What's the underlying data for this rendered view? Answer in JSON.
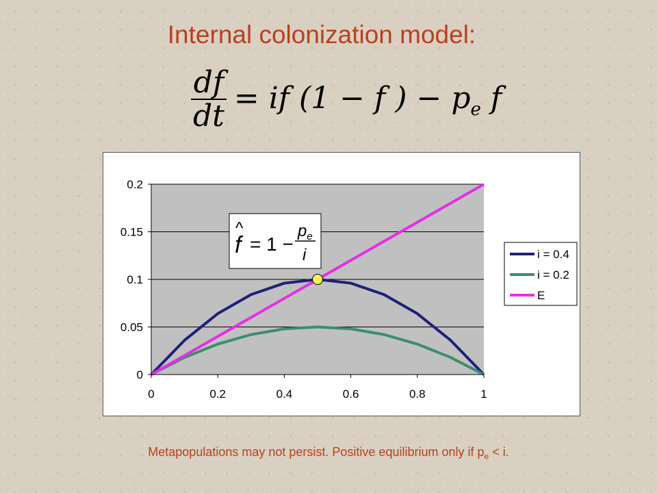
{
  "title": "Internal colonization model:",
  "equation": {
    "numerator": "df",
    "denominator": "dt",
    "rhs": "= if (1 − f ) − p",
    "rhs_sub": "e",
    "rhs_tail": "f"
  },
  "inset_equation": {
    "lhs": "f",
    "rhs_lead": "= 1 −",
    "numerator": "p",
    "numerator_sub": "e",
    "denominator": "i"
  },
  "footer": {
    "text_before": "Metapopulations may not persist. Positive equilibrium only if p",
    "sub": "e",
    "text_after": " < i."
  },
  "colors": {
    "title": "#b8401e",
    "plot_bg": "#c0c0c0",
    "series_i04": "#1f1f7a",
    "series_i02": "#3a8f6a",
    "series_E": "#e52ee5",
    "marker": "#f2f25a"
  },
  "chart_data": {
    "type": "line",
    "x": [
      0,
      0.1,
      0.2,
      0.3,
      0.4,
      0.5,
      0.6,
      0.7,
      0.8,
      0.9,
      1.0
    ],
    "series": [
      {
        "name": "i = 0.4",
        "color": "#1f1f7a",
        "values": [
          0,
          0.036,
          0.064,
          0.084,
          0.096,
          0.1,
          0.096,
          0.084,
          0.064,
          0.036,
          0
        ]
      },
      {
        "name": "i = 0.2",
        "color": "#3a8f6a",
        "values": [
          0,
          0.018,
          0.032,
          0.042,
          0.048,
          0.05,
          0.048,
          0.042,
          0.032,
          0.018,
          0
        ]
      },
      {
        "name": "E",
        "color": "#e52ee5",
        "values": [
          0,
          0.02,
          0.04,
          0.06,
          0.08,
          0.1,
          0.12,
          0.14,
          0.16,
          0.18,
          0.2
        ]
      }
    ],
    "marker": {
      "x": 0.5,
      "y": 0.1
    },
    "xlim": [
      0,
      1
    ],
    "ylim": [
      0,
      0.2
    ],
    "xticks": [
      "0",
      "0.2",
      "0.4",
      "0.6",
      "0.8",
      "1"
    ],
    "yticks": [
      "0",
      "0.05",
      "0.1",
      "0.15",
      "0.2"
    ],
    "grid": "horizontal",
    "legend": "right"
  }
}
